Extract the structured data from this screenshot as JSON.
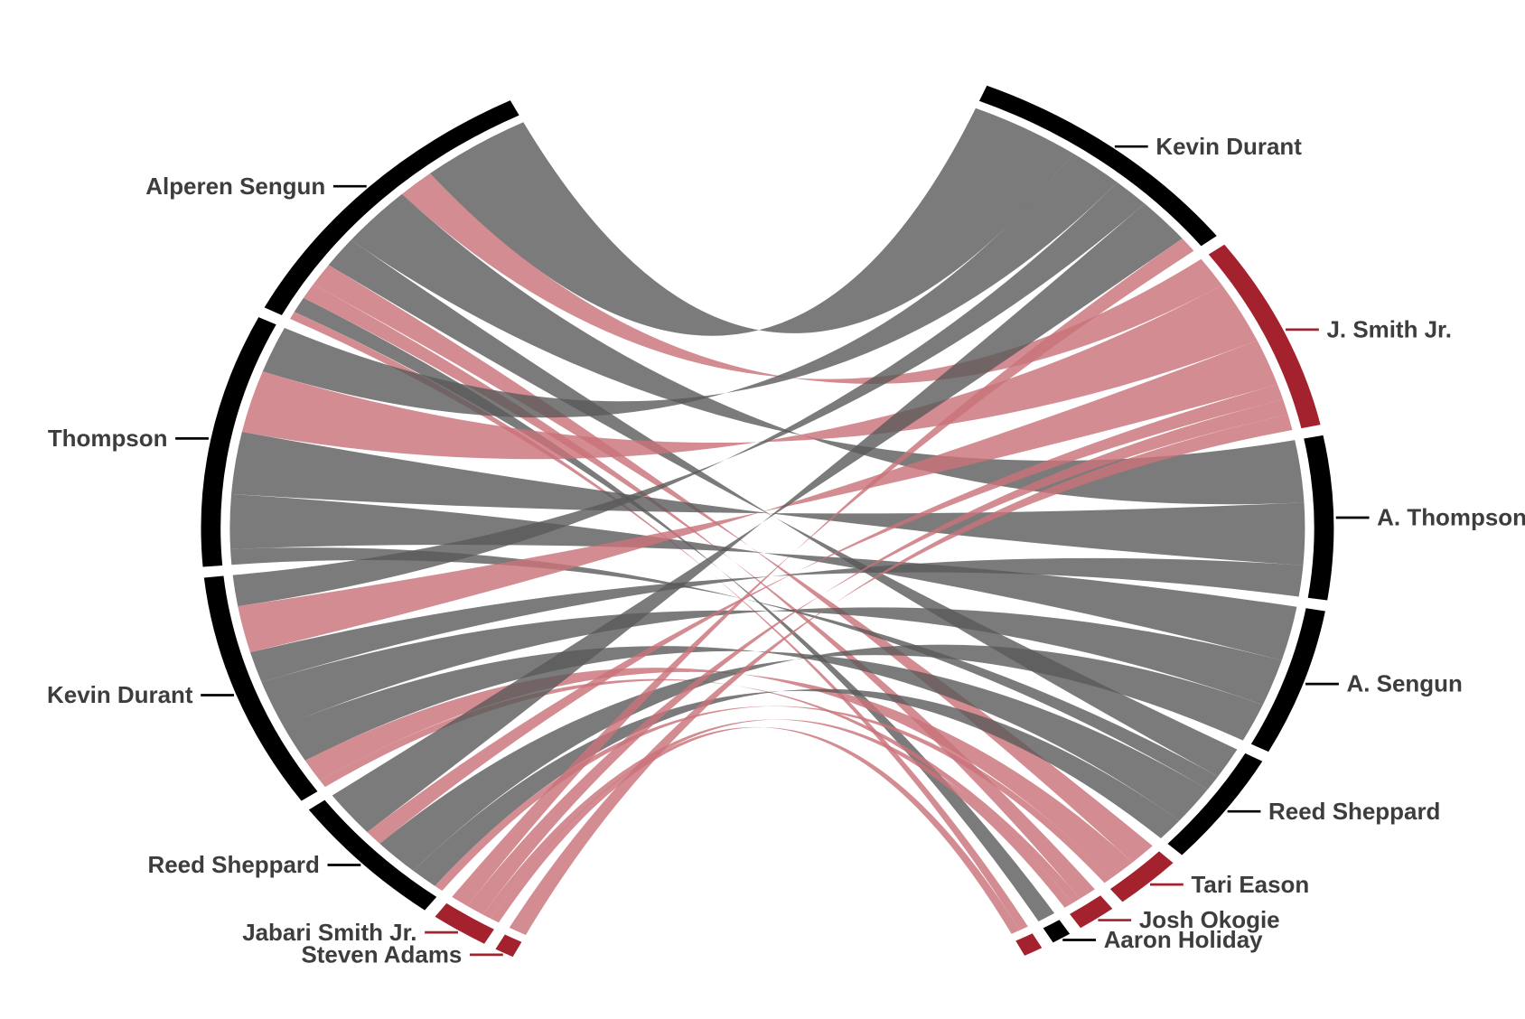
{
  "chart_data": {
    "type": "chord",
    "title": "",
    "left_groups": [
      {
        "name": "Alperen Sengun",
        "color": "#000000"
      },
      {
        "name": "Thompson",
        "color": "#000000"
      },
      {
        "name": "Kevin Durant",
        "color": "#000000"
      },
      {
        "name": "Reed Sheppard",
        "color": "#000000"
      },
      {
        "name": "Jabari Smith Jr.",
        "color": "#a3222e"
      },
      {
        "name": "Steven Adams",
        "color": "#a3222e"
      }
    ],
    "right_groups": [
      {
        "name": "Kevin Durant",
        "color": "#000000"
      },
      {
        "name": "J. Smith Jr.",
        "color": "#a3222e"
      },
      {
        "name": "A. Thompson",
        "color": "#000000"
      },
      {
        "name": "A. Sengun",
        "color": "#000000"
      },
      {
        "name": "Reed Sheppard",
        "color": "#000000"
      },
      {
        "name": "Tari Eason",
        "color": "#a3222e"
      },
      {
        "name": "Josh Okogie",
        "color": "#a3222e"
      },
      {
        "name": "Aaron Holiday",
        "color": "#000000"
      },
      {
        "name": "",
        "color": "#a3222e"
      }
    ],
    "matrix_left_to_right": [
      [
        12,
        4,
        8,
        0,
        4,
        3,
        2,
        2,
        1
      ],
      [
        6,
        8,
        8,
        7,
        2,
        0,
        0,
        0,
        0
      ],
      [
        4,
        6,
        4,
        6,
        5,
        3,
        1,
        0,
        0
      ],
      [
        6,
        2,
        0,
        5,
        3,
        1,
        0,
        0,
        0
      ],
      [
        2,
        2,
        0,
        0,
        0,
        0,
        1,
        0,
        1
      ],
      [
        0,
        2,
        0,
        0,
        0,
        0,
        0,
        0,
        0
      ]
    ],
    "chord_colors": {
      "gray": "#5a5a5a",
      "red": "#c9737a"
    }
  }
}
